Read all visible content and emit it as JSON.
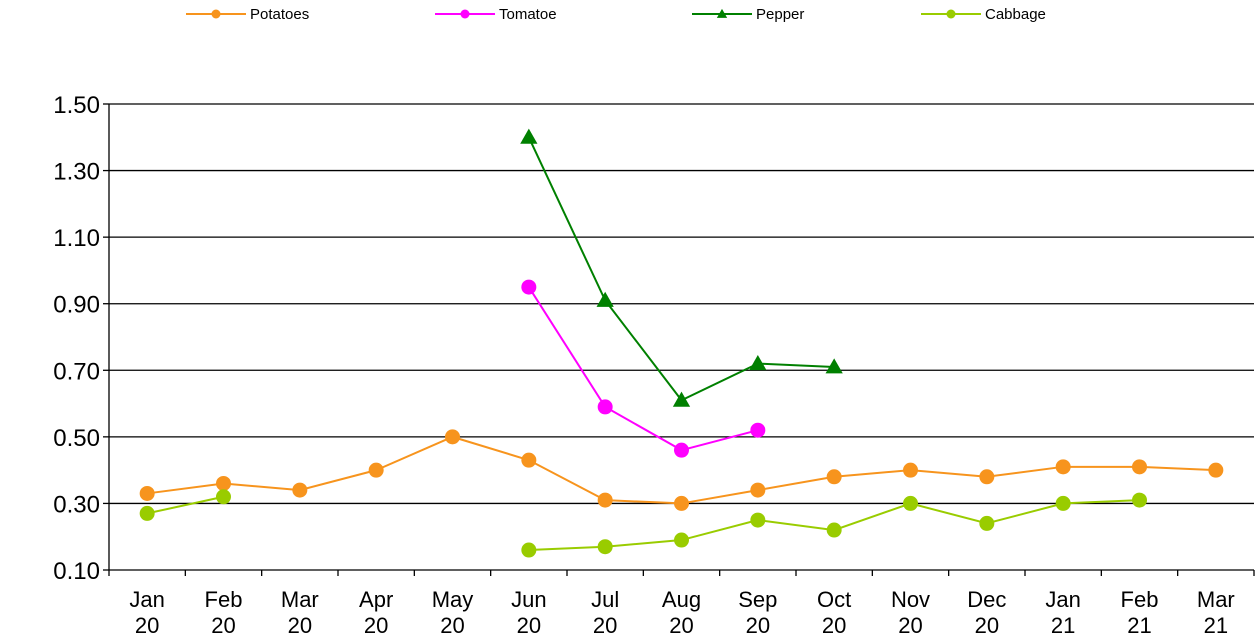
{
  "chart_data": {
    "type": "line",
    "title": "",
    "xlabel": "",
    "ylabel": "",
    "categories": [
      [
        "Jan",
        "20"
      ],
      [
        "Feb",
        "20"
      ],
      [
        "Mar",
        "20"
      ],
      [
        "Apr",
        "20"
      ],
      [
        "May",
        "20"
      ],
      [
        "Jun",
        "20"
      ],
      [
        "Jul",
        "20"
      ],
      [
        "Aug",
        "20"
      ],
      [
        "Sep",
        "20"
      ],
      [
        "Oct",
        "20"
      ],
      [
        "Nov",
        "20"
      ],
      [
        "Dec",
        "20"
      ],
      [
        "Jan",
        "21"
      ],
      [
        "Feb",
        "21"
      ],
      [
        "Mar",
        "21"
      ]
    ],
    "yticks": [
      "0.10",
      "0.30",
      "0.50",
      "0.70",
      "0.90",
      "1.10",
      "1.30",
      "1.50"
    ],
    "ylim": [
      0.1,
      1.5
    ],
    "grid": "horizontal",
    "legend_position": "top",
    "series": [
      {
        "name": "Potatoes",
        "color": "#F7941D",
        "marker": "circle",
        "values": [
          0.33,
          0.36,
          0.34,
          0.4,
          0.5,
          0.43,
          0.31,
          0.3,
          0.34,
          0.38,
          0.4,
          0.38,
          0.41,
          0.41,
          0.4
        ]
      },
      {
        "name": "Tomatoe",
        "color": "#FF00FF",
        "marker": "circle",
        "values": [
          null,
          null,
          null,
          null,
          null,
          0.95,
          0.59,
          0.46,
          0.52,
          null,
          null,
          null,
          null,
          null,
          null
        ]
      },
      {
        "name": "Pepper",
        "color": "#008000",
        "marker": "triangle",
        "values": [
          null,
          null,
          null,
          null,
          null,
          1.4,
          0.91,
          0.61,
          0.72,
          0.71,
          null,
          null,
          null,
          null,
          null
        ]
      },
      {
        "name": "Cabbage",
        "color": "#99CC00",
        "marker": "circle",
        "values": [
          0.27,
          0.32,
          null,
          null,
          null,
          0.16,
          0.17,
          0.19,
          0.25,
          0.22,
          0.3,
          0.24,
          0.3,
          0.31,
          null
        ]
      }
    ]
  }
}
